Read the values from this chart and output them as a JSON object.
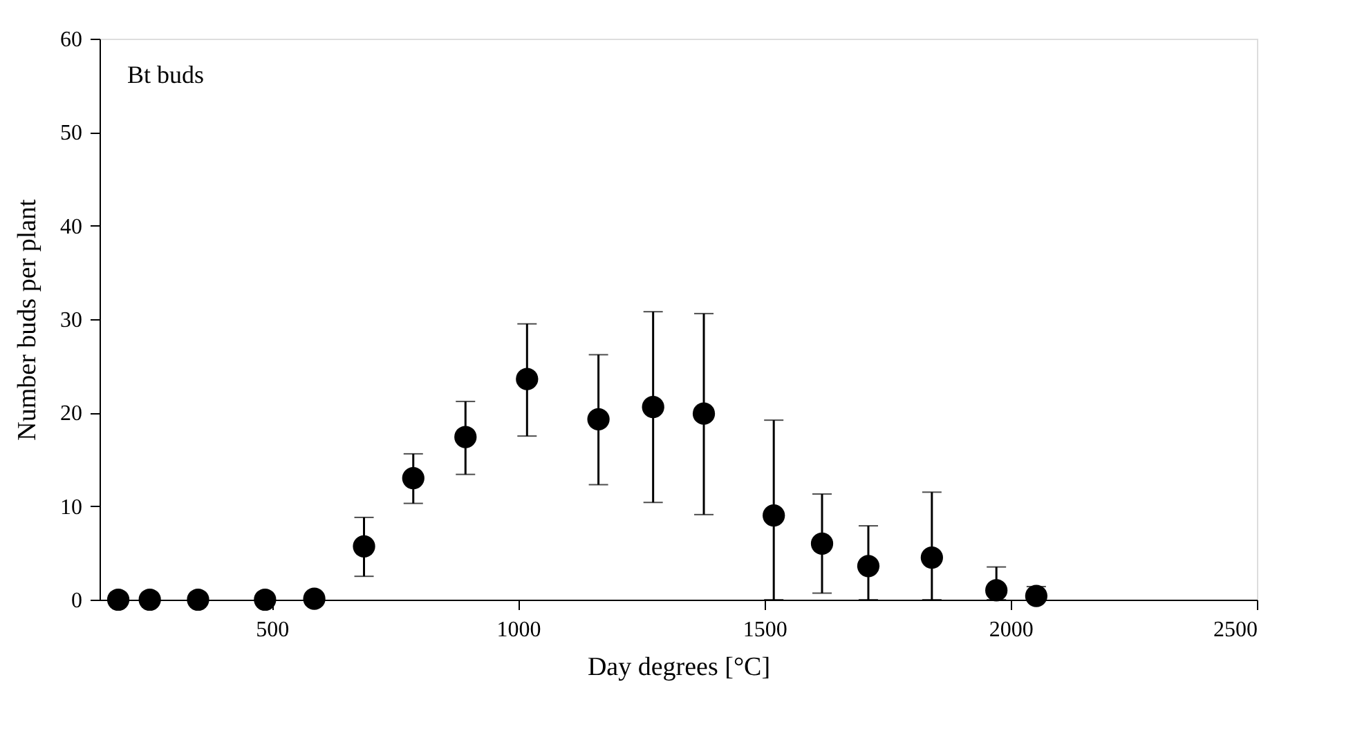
{
  "chart_data": {
    "type": "scatter",
    "xlabel": "Day degrees [°C]",
    "ylabel": "Number buds per plant",
    "annotations": [
      "Bt buds"
    ],
    "x": [
      188,
      252,
      350,
      486,
      586,
      687,
      787,
      893,
      1018,
      1163,
      1274,
      1377,
      1519,
      1617,
      1711,
      1840,
      1971,
      2052
    ],
    "series": [
      {
        "color": "#000000",
        "values": [
          0,
          0,
          0,
          0,
          0.1,
          5.7,
          13.0,
          17.4,
          23.6,
          19.3,
          20.6,
          19.9,
          9.0,
          6.0,
          3.6,
          4.5,
          1.0,
          0.4
        ],
        "errors": [
          null,
          null,
          null,
          null,
          null,
          [
            2.5,
            8.8
          ],
          [
            10.3,
            15.6
          ],
          [
            13.4,
            21.2
          ],
          [
            17.5,
            29.5
          ],
          [
            12.3,
            26.2
          ],
          [
            10.4,
            30.8
          ],
          [
            9.1,
            30.6
          ],
          [
            0,
            19.2
          ],
          [
            0.7,
            11.3
          ],
          [
            0,
            7.9
          ],
          [
            0,
            11.5
          ],
          [
            0,
            3.5
          ],
          [
            0.4,
            1.4
          ]
        ]
      }
    ],
    "xlim": [
      150,
      2500
    ],
    "xticks": [
      500,
      1000,
      1500,
      2000,
      2500
    ],
    "ylim": [
      0,
      60
    ],
    "yticks": [
      0,
      10,
      20,
      30,
      40,
      50,
      60
    ],
    "grid": false,
    "marker": "circle"
  }
}
